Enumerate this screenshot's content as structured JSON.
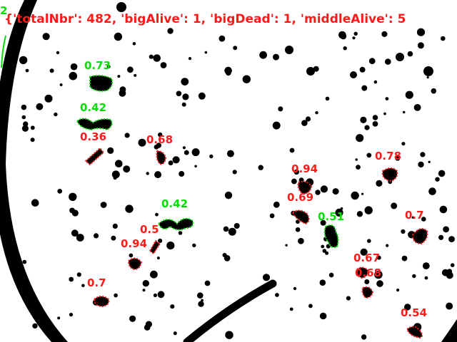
{
  "image": {
    "kind": "segmented microscopy image with detection labels",
    "colors": {
      "background": "#ffffff",
      "object": "#000000",
      "alive": "#00e000",
      "dead": "#ff1a1a"
    }
  },
  "summary_text": "{'totalNbr': 482, 'bigAlive': 1, 'bigDead': 1, 'middleAlive': 5",
  "corner_label": "2",
  "detections": [
    {
      "text": "0.73",
      "status": "alive"
    },
    {
      "text": "0.42",
      "status": "alive"
    },
    {
      "text": "0.36",
      "status": "dead"
    },
    {
      "text": "0.68",
      "status": "dead"
    },
    {
      "text": "0.94",
      "status": "dead"
    },
    {
      "text": "0.78",
      "status": "dead"
    },
    {
      "text": "0.69",
      "status": "dead"
    },
    {
      "text": "0.42",
      "status": "alive"
    },
    {
      "text": "0.51",
      "status": "alive"
    },
    {
      "text": "0.7",
      "status": "dead"
    },
    {
      "text": "0.5",
      "status": "dead"
    },
    {
      "text": "0.94",
      "status": "dead"
    },
    {
      "text": "0.67",
      "status": "dead"
    },
    {
      "text": "0.68",
      "status": "dead"
    },
    {
      "text": "0.7",
      "status": "dead"
    },
    {
      "text": "0.54",
      "status": "dead"
    }
  ]
}
